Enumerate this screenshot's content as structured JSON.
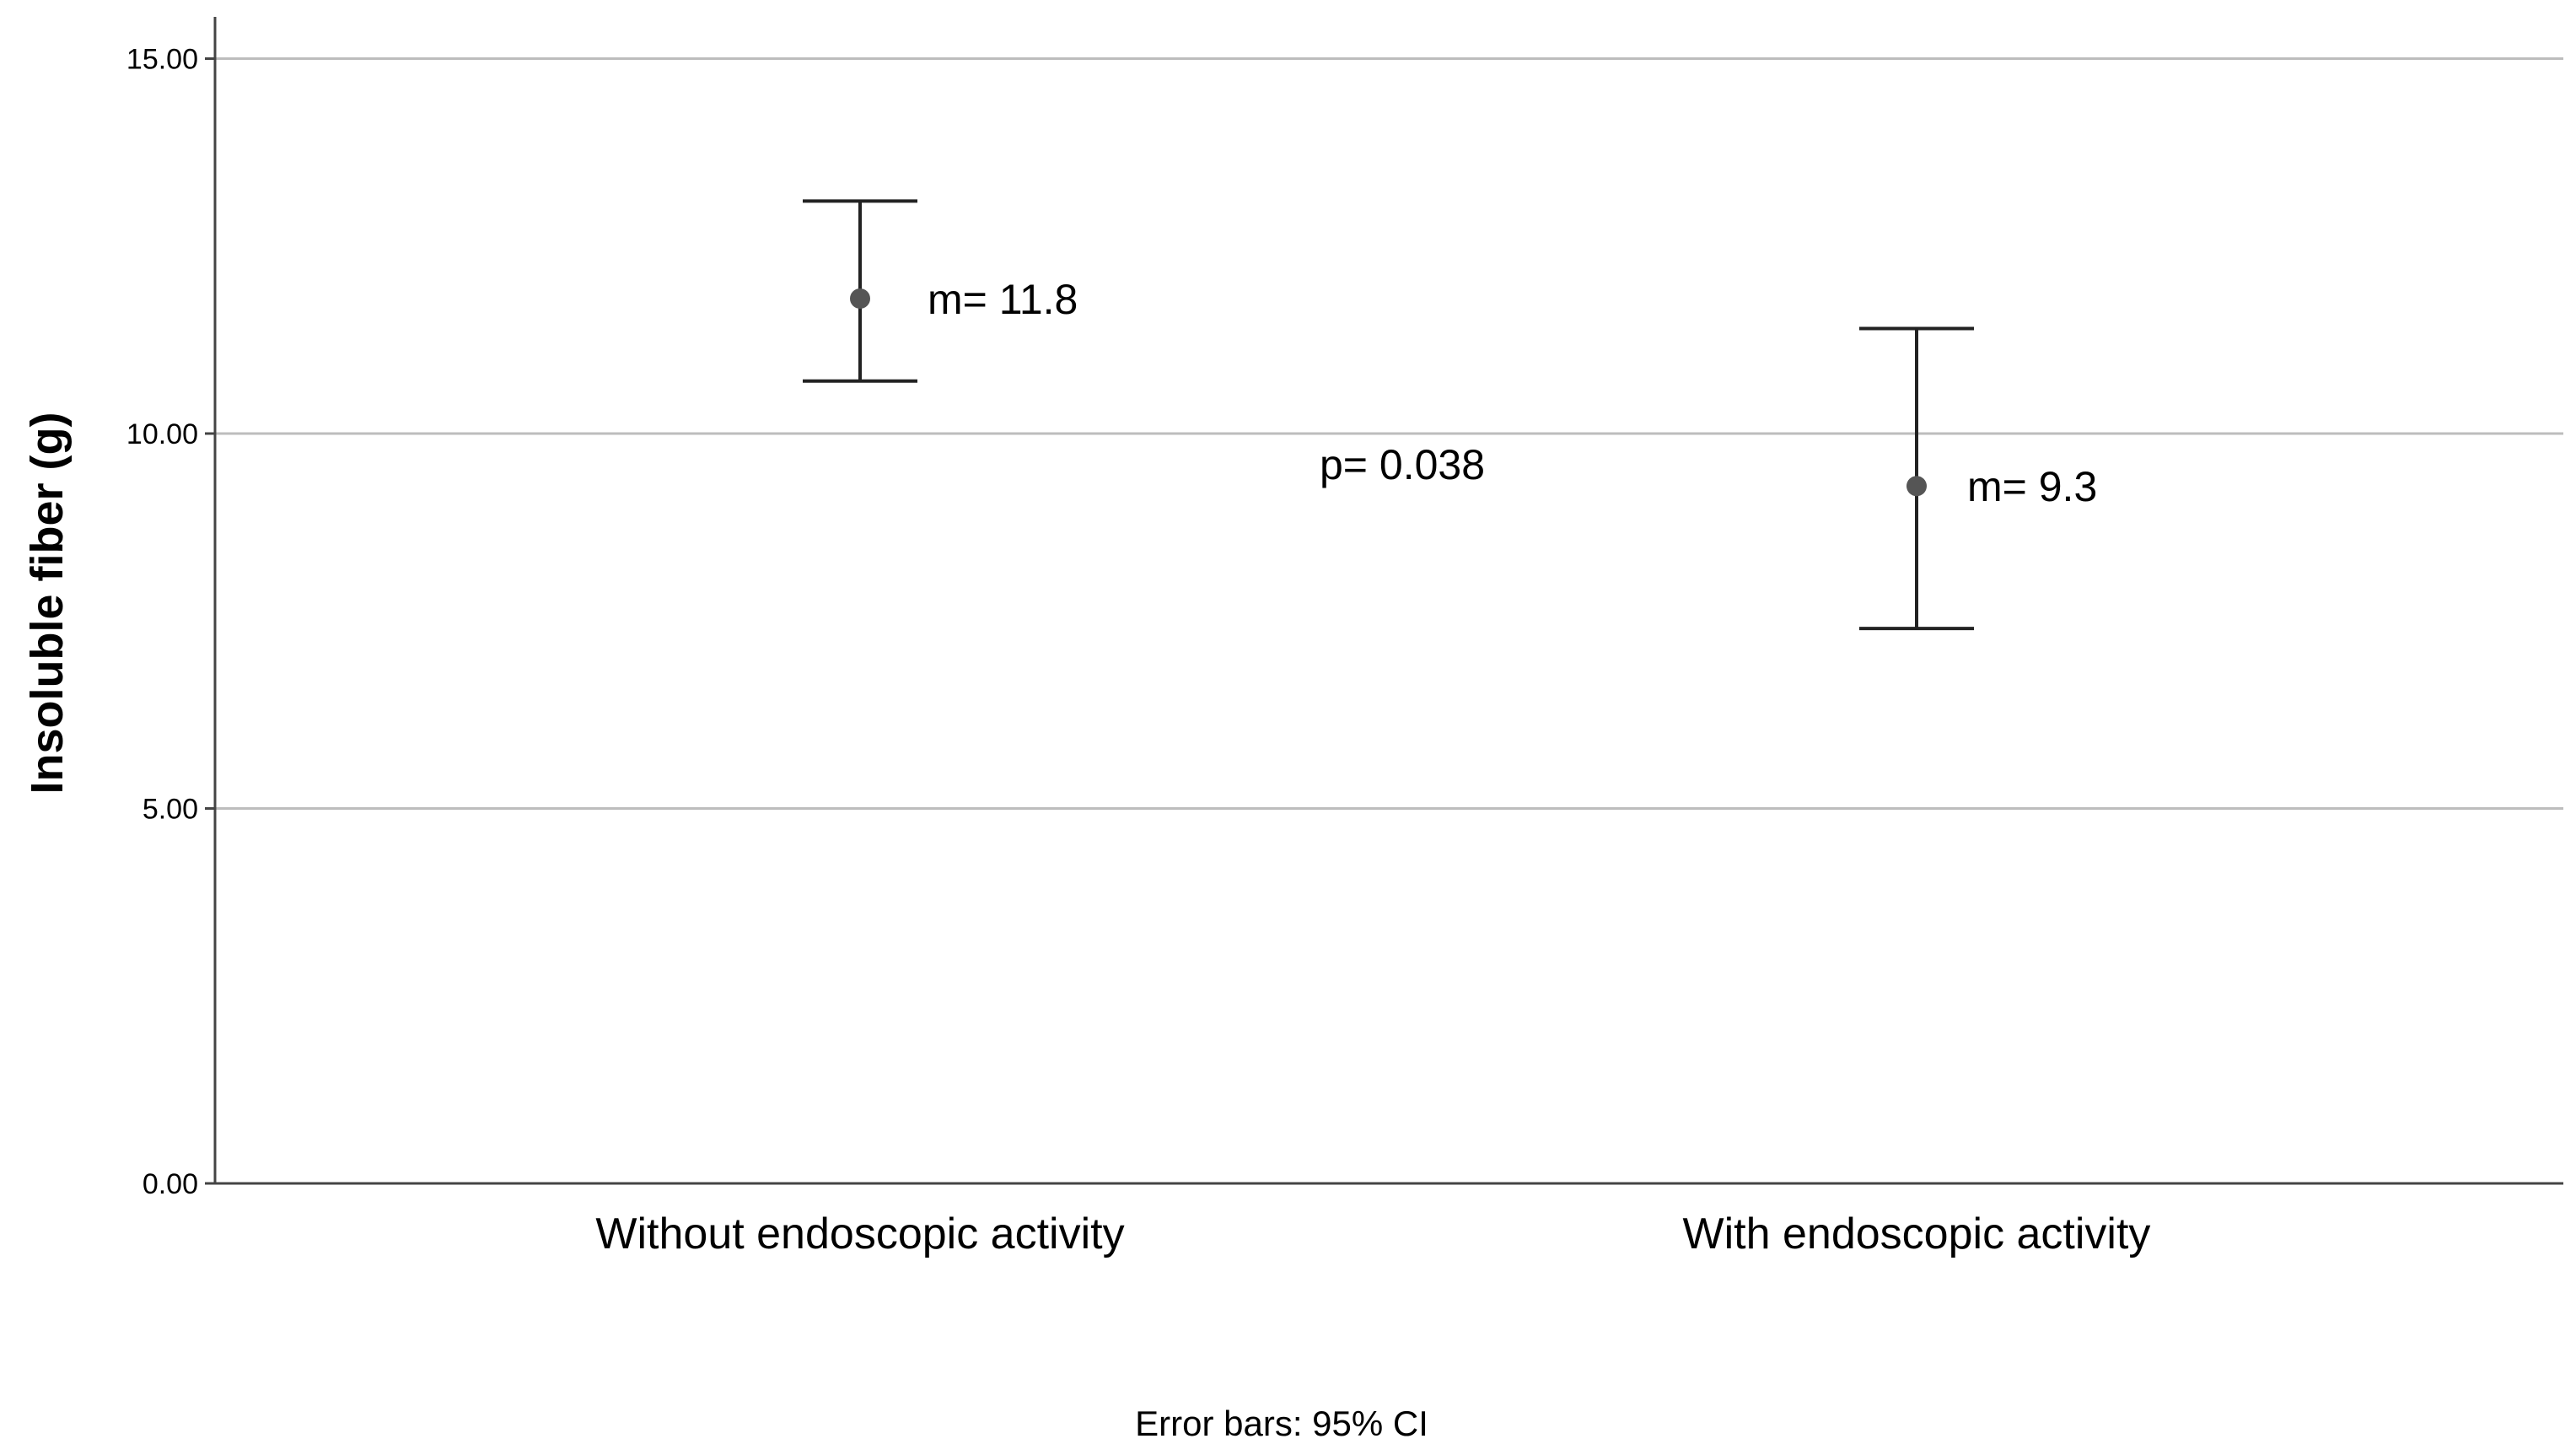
{
  "chart_data": {
    "type": "error_bar",
    "ylabel": "Insoluble fiber (g)",
    "xlabel": "",
    "ylim": [
      0,
      15.5
    ],
    "yticks": [
      0,
      5,
      10,
      15
    ],
    "ytick_labels": [
      "0.00",
      "5.00",
      "10.00",
      "15.00"
    ],
    "grid": "horizontal",
    "categories": [
      "Without endoscopic activity",
      "With endoscopic activity"
    ],
    "means": [
      11.8,
      9.3
    ],
    "ci_lower": [
      10.7,
      7.4
    ],
    "ci_upper": [
      13.1,
      11.4
    ],
    "mean_labels": [
      "m= 11.8",
      "m= 9.3"
    ],
    "annotation": "p= 0.038",
    "footnote": "Error bars: 95% CI",
    "colors": {
      "grid": "#bdbdbd",
      "axis": "#444444",
      "bar": "#222222",
      "marker": "#555555"
    }
  }
}
